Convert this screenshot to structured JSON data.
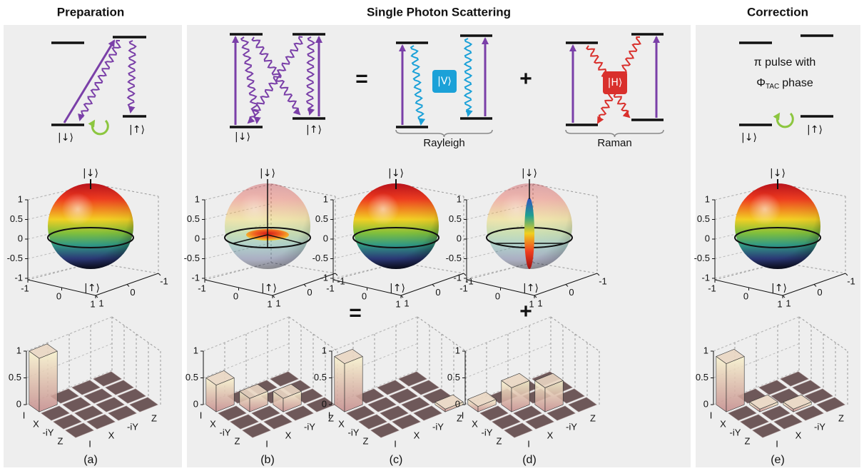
{
  "headers": [
    "Preparation",
    "Single Photon Scattering",
    "Correction"
  ],
  "levels": {
    "down": "|↓⟩",
    "up": "|↑⟩",
    "v_state": "|V⟩",
    "h_state": "|H⟩",
    "rayleigh": "Rayleigh",
    "raman": "Raman"
  },
  "correction": {
    "line1": "π pulse with",
    "phi": "Φ",
    "sub": "TAC",
    "line2": "phase"
  },
  "operators": [
    "=",
    "+"
  ],
  "bloch": {
    "zticks": [
      1,
      0.5,
      0,
      -0.5,
      -1
    ],
    "xticks": [
      -1,
      0,
      1
    ],
    "yticks": [
      1,
      0,
      -1
    ],
    "north": "|↓⟩",
    "south": "|↑⟩"
  },
  "process": {
    "zticks": [
      1,
      0.5,
      0
    ],
    "basis": [
      "I",
      "X",
      "-iY",
      "Z"
    ],
    "matrices": [
      [
        [
          1,
          0,
          0,
          0
        ],
        [
          0,
          0,
          0,
          0
        ],
        [
          0,
          0,
          0,
          0
        ],
        [
          0,
          0,
          0,
          0
        ]
      ],
      [
        [
          0.5,
          0,
          0,
          0
        ],
        [
          0,
          0.25,
          0,
          0
        ],
        [
          0,
          0,
          0.25,
          0
        ],
        [
          0,
          0,
          0,
          0
        ]
      ],
      [
        [
          0.9,
          0,
          0,
          0
        ],
        [
          0,
          0,
          0,
          0
        ],
        [
          0,
          0,
          0,
          0
        ],
        [
          0,
          0,
          0,
          0.05
        ]
      ],
      [
        [
          0.1,
          0,
          0,
          0
        ],
        [
          0,
          0.45,
          0,
          0
        ],
        [
          0,
          0,
          0.45,
          0
        ],
        [
          0,
          0,
          0,
          0
        ]
      ],
      [
        [
          0.9,
          0,
          0,
          0
        ],
        [
          0,
          0.05,
          0,
          0
        ],
        [
          0,
          0,
          0.05,
          0
        ],
        [
          0,
          0,
          0,
          0
        ]
      ]
    ]
  },
  "panel_labels": [
    "(a)",
    "(b)",
    "(c)",
    "(d)",
    "(e)"
  ]
}
